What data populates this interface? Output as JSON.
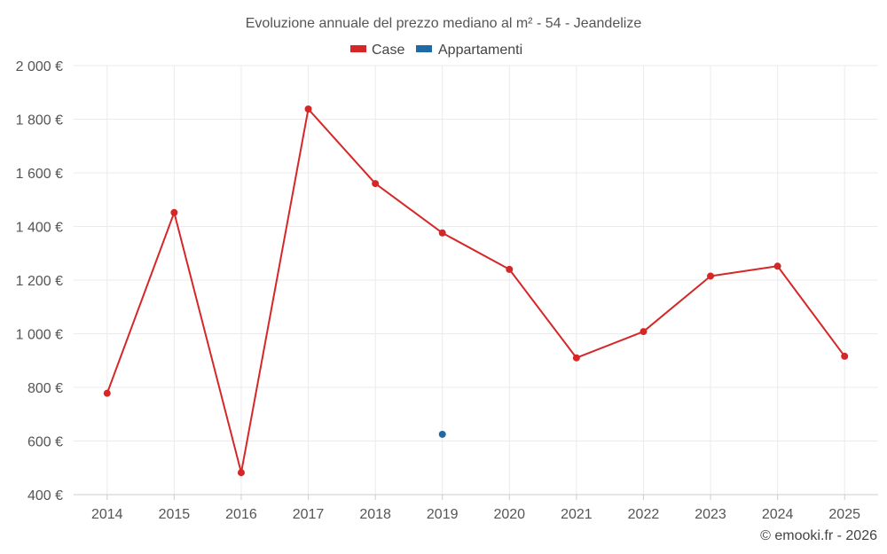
{
  "chart_data": {
    "type": "line",
    "title": "Evoluzione annuale del prezzo mediano al m² - 54 - Jeandelize",
    "xlabel": "",
    "ylabel": "",
    "categories": [
      "2014",
      "2015",
      "2016",
      "2017",
      "2018",
      "2019",
      "2020",
      "2021",
      "2022",
      "2023",
      "2024",
      "2025"
    ],
    "ylim": [
      400,
      2000
    ],
    "yticks": [
      400,
      600,
      800,
      1000,
      1200,
      1400,
      1600,
      1800,
      2000
    ],
    "ytick_labels": [
      "400 €",
      "600 €",
      "800 €",
      "1 000 €",
      "1 200 €",
      "1 400 €",
      "1 600 €",
      "1 800 €",
      "2 000 €"
    ],
    "grid": true,
    "legend_position": "top-center",
    "series": [
      {
        "name": "Case",
        "color": "#d62728",
        "values": [
          778,
          1452,
          482,
          1838,
          1560,
          1376,
          1240,
          910,
          1008,
          1215,
          1252,
          916
        ]
      },
      {
        "name": "Appartamenti",
        "color": "#1f6aa5",
        "values": [
          null,
          null,
          null,
          null,
          null,
          625,
          null,
          null,
          null,
          null,
          null,
          null
        ]
      }
    ]
  },
  "credit": "© emooki.fr - 2026"
}
